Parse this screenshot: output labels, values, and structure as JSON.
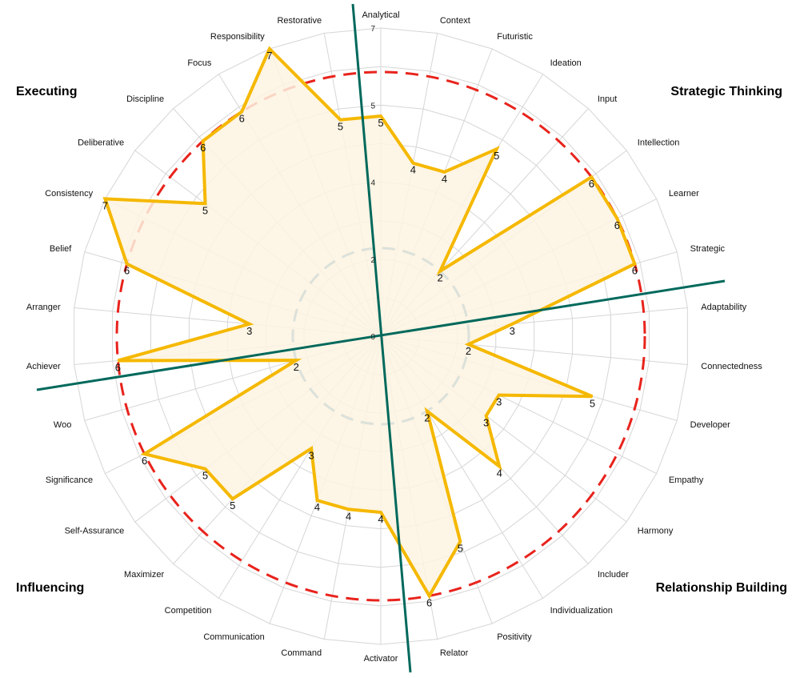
{
  "chart_data": {
    "type": "radar",
    "title": "",
    "range": [
      0,
      7
    ],
    "tick_labels": [
      "0",
      "2",
      "4",
      "5",
      "7"
    ],
    "tick_values": [
      0,
      1.75,
      3.5,
      5.25,
      7
    ],
    "grid": true,
    "categories": [
      "Analytical",
      "Context",
      "Futuristic",
      "Ideation",
      "Input",
      "Intellection",
      "Learner",
      "Strategic",
      "Adaptability",
      "Connectedness",
      "Developer",
      "Empathy",
      "Harmony",
      "Includer",
      "Individualization",
      "Positivity",
      "Relator",
      "Activator",
      "Command",
      "Communication",
      "Competition",
      "Maximizer",
      "Self-Assurance",
      "Significance",
      "Woo",
      "Achiever",
      "Arranger",
      "Belief",
      "Consistency",
      "Deliberative",
      "Discipline",
      "Focus",
      "Responsibility",
      "Restorative"
    ],
    "values": [
      5,
      4,
      4,
      5,
      2,
      6,
      6,
      6,
      3,
      2,
      5,
      3,
      3,
      4,
      2,
      5,
      6,
      4,
      4,
      4,
      3,
      5,
      5,
      6,
      2,
      6,
      3,
      6,
      7,
      5,
      6,
      6,
      7,
      5
    ],
    "series_color": "#f5b800",
    "fill_color": "#fdf3e0",
    "reference_circles": [
      {
        "value": 6,
        "color": "#e8231c",
        "style": "dashed"
      },
      {
        "value": 2,
        "color": "#1f77b4",
        "style": "dashed"
      }
    ],
    "divider_color": "#00695c",
    "domains": [
      {
        "name": "Executing",
        "color": "#5ff5e6",
        "position": "top-left"
      },
      {
        "name": "Strategic Thinking",
        "color": "#ff7eb6",
        "position": "top-right"
      },
      {
        "name": "Influencing",
        "color": "#ffe81a",
        "position": "bottom-left"
      },
      {
        "name": "Relationship Building",
        "color": "#ff8a78",
        "position": "bottom-right"
      }
    ]
  }
}
